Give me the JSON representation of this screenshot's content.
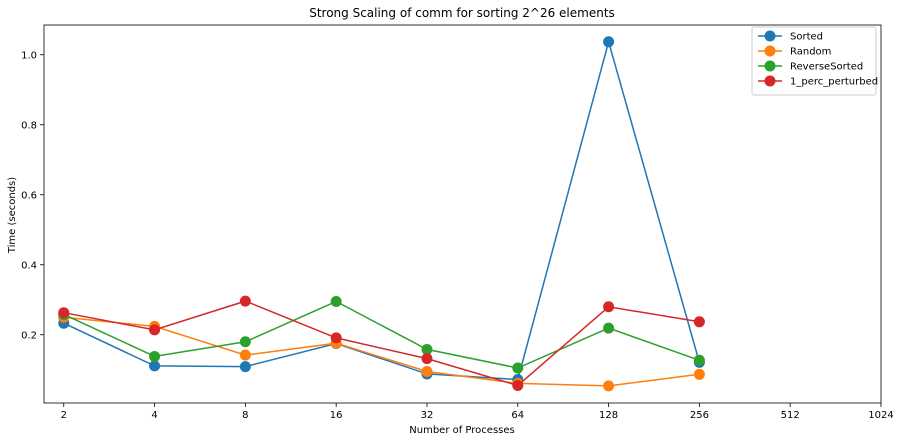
{
  "chart_data": {
    "type": "line",
    "title": "Strong Scaling of comm for sorting 2^26 elements",
    "xlabel": "Number of Processes",
    "ylabel": "Time (seconds)",
    "x_scale": "log2",
    "x_ticks": [
      2,
      4,
      8,
      16,
      32,
      64,
      128,
      256,
      512,
      1024
    ],
    "x_tick_labels": [
      "2",
      "4",
      "8",
      "16",
      "32",
      "64",
      "128",
      "256",
      "512",
      "1024"
    ],
    "xlim": [
      1.72,
      1024
    ],
    "y_ticks": [
      0.2,
      0.4,
      0.6,
      0.8,
      1.0
    ],
    "y_tick_labels": [
      "0.2",
      "0.4",
      "0.6",
      "0.8",
      "1.0"
    ],
    "ylim": [
      0.005,
      1.085
    ],
    "grid": false,
    "legend_position": "top-right",
    "x": [
      2,
      4,
      8,
      16,
      32,
      64,
      128,
      256
    ],
    "series": [
      {
        "name": "Sorted",
        "color": "#1f77b4",
        "values": [
          0.233,
          0.111,
          0.109,
          0.175,
          0.088,
          0.072,
          1.037,
          0.121
        ]
      },
      {
        "name": "Random",
        "color": "#ff7f0e",
        "values": [
          0.25,
          0.224,
          0.142,
          0.176,
          0.095,
          0.061,
          0.054,
          0.087
        ]
      },
      {
        "name": "ReverseSorted",
        "color": "#2ca02c",
        "values": [
          0.258,
          0.138,
          0.18,
          0.295,
          0.158,
          0.105,
          0.219,
          0.127
        ]
      },
      {
        "name": "1_perc_perturbed",
        "color": "#d62728",
        "values": [
          0.263,
          0.214,
          0.296,
          0.191,
          0.132,
          0.055,
          0.28,
          0.237
        ]
      }
    ]
  }
}
